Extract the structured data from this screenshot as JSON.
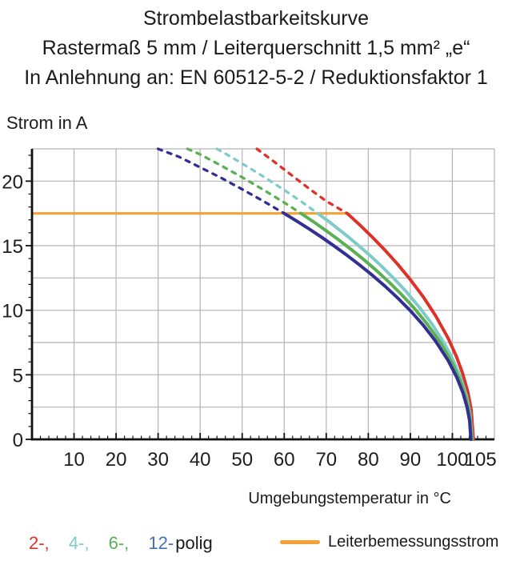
{
  "title": {
    "line1": "Strombelastbarkeitskurve",
    "line2": "Rastermaß 5 mm / Leiterquerschnitt 1,5 mm² „e“",
    "line3": "In Anlehnung an: EN 60512-5-2 / Reduktionsfaktor 1"
  },
  "chart_data": {
    "type": "line",
    "title": "Strombelastbarkeitskurve",
    "xlabel": "Umgebungstemperatur in °C",
    "ylabel": "Strom in A",
    "xlim": [
      0,
      110
    ],
    "ylim": [
      0,
      22.5
    ],
    "xticks": [
      10,
      20,
      30,
      40,
      50,
      60,
      70,
      80,
      90,
      100,
      105
    ],
    "yticks": [
      0,
      5,
      10,
      15,
      20
    ],
    "x_grid_step": 10,
    "y_grid_step": 2.5,
    "x_minor_tick_step": 2,
    "y_minor_tick_step": 1,
    "grid_on": true,
    "grid_color": "#b4b4b4",
    "axis_color": "#111111",
    "rated_current_line": {
      "label": "Leiterbemessungsstrom",
      "value_a": 17.5,
      "x_start": 0,
      "x_end": 75,
      "color": "#F4A136"
    },
    "series": [
      {
        "name": "2-polig",
        "color": "#DC3227",
        "solid": [
          [
            75,
            17.5
          ],
          [
            78,
            16.6
          ],
          [
            81,
            15.65
          ],
          [
            84,
            14.64
          ],
          [
            87,
            13.56
          ],
          [
            90,
            12.37
          ],
          [
            93,
            11.07
          ],
          [
            96,
            9.59
          ],
          [
            99,
            7.83
          ],
          [
            101,
            6.39
          ],
          [
            102.5,
            5.05
          ],
          [
            103.7,
            3.64
          ],
          [
            104.5,
            2.26
          ],
          [
            105,
            0
          ]
        ],
        "dashed": [
          [
            53.5,
            22.5
          ],
          [
            58,
            21.4
          ],
          [
            62,
            20.4
          ],
          [
            66,
            19.4
          ],
          [
            70,
            18.45
          ],
          [
            72.5,
            17.97
          ],
          [
            75,
            17.5
          ]
        ]
      },
      {
        "name": "4-polig",
        "color": "#7FCBC8",
        "solid": [
          [
            68,
            17.5
          ],
          [
            71,
            16.77
          ],
          [
            74,
            16.01
          ],
          [
            77,
            15.2
          ],
          [
            80,
            14.36
          ],
          [
            83,
            13.46
          ],
          [
            86,
            12.49
          ],
          [
            89,
            11.45
          ],
          [
            92,
            10.29
          ],
          [
            95,
            9.0
          ],
          [
            98,
            7.48
          ],
          [
            100,
            6.26
          ],
          [
            102,
            4.75
          ],
          [
            103.4,
            3.29
          ],
          [
            104.2,
            2.04
          ],
          [
            104.7,
            0
          ]
        ],
        "dashed": [
          [
            44,
            22.5
          ],
          [
            48,
            21.75
          ],
          [
            52,
            20.97
          ],
          [
            56,
            20.16
          ],
          [
            60,
            19.31
          ],
          [
            64,
            18.43
          ],
          [
            68,
            17.5
          ]
        ]
      },
      {
        "name": "6-polig",
        "color": "#5BB054",
        "solid": [
          [
            64,
            17.5
          ],
          [
            67,
            16.84
          ],
          [
            70,
            16.15
          ],
          [
            73,
            15.44
          ],
          [
            76,
            14.69
          ],
          [
            79,
            13.9
          ],
          [
            82,
            13.06
          ],
          [
            85,
            12.16
          ],
          [
            88,
            11.19
          ],
          [
            91,
            10.13
          ],
          [
            94,
            8.94
          ],
          [
            97,
            7.57
          ],
          [
            100,
            5.89
          ],
          [
            102,
            4.43
          ],
          [
            103.3,
            3.13
          ],
          [
            104.1,
            1.94
          ],
          [
            104.6,
            0
          ]
        ],
        "dashed": [
          [
            37,
            22.5
          ],
          [
            40,
            22.07
          ],
          [
            45,
            21.2
          ],
          [
            50,
            20.3
          ],
          [
            55,
            19.34
          ],
          [
            60,
            18.34
          ],
          [
            64,
            17.5
          ]
        ]
      },
      {
        "name": "12-polig",
        "color": "#312F92",
        "solid": [
          [
            60,
            17.5
          ],
          [
            63,
            16.9
          ],
          [
            66,
            16.28
          ],
          [
            69,
            15.63
          ],
          [
            72,
            14.95
          ],
          [
            75,
            14.24
          ],
          [
            78,
            13.49
          ],
          [
            81,
            12.7
          ],
          [
            84,
            11.86
          ],
          [
            87,
            10.95
          ],
          [
            90,
            9.97
          ],
          [
            93,
            8.87
          ],
          [
            96,
            7.61
          ],
          [
            99,
            6.1
          ],
          [
            101,
            4.84
          ],
          [
            102.5,
            3.62
          ],
          [
            103.5,
            2.49
          ],
          [
            104.1,
            1.44
          ],
          [
            104.4,
            0
          ]
        ],
        "dashed": [
          [
            30,
            22.5
          ],
          [
            35,
            21.88
          ],
          [
            40,
            21.07
          ],
          [
            45,
            20.25
          ],
          [
            50,
            19.37
          ],
          [
            55,
            18.46
          ],
          [
            60,
            17.5
          ]
        ]
      }
    ]
  },
  "legend": {
    "items": [
      {
        "label": "2-,",
        "color": "#DC3227"
      },
      {
        "label": "4-,",
        "color": "#7FCBC8"
      },
      {
        "label": "6-,",
        "color": "#5BB054"
      },
      {
        "label": "12-",
        "color": "#4471B1"
      }
    ],
    "suffix": "polig",
    "rated": {
      "label": "Leiterbemessungsstrom",
      "color": "#F4A136"
    }
  }
}
